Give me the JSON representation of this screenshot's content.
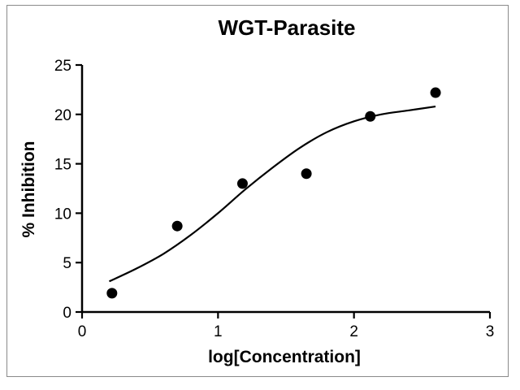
{
  "chart_data": {
    "type": "scatter",
    "title": "WGT-Parasite",
    "xlabel": "log[Concentration]",
    "ylabel": "% Inhibition",
    "xlim": [
      0,
      3
    ],
    "ylim": [
      0,
      25
    ],
    "xticks": [
      "0",
      "1",
      "2",
      "3"
    ],
    "yticks": [
      "0",
      "5",
      "10",
      "15",
      "20",
      "25"
    ],
    "grid": false,
    "legend": "none",
    "series": [
      {
        "x": [
          0.22,
          0.7,
          1.18,
          1.65,
          2.12,
          2.6
        ],
        "y": [
          1.9,
          8.7,
          13.0,
          14.0,
          19.8,
          22.2
        ]
      }
    ],
    "fit": {
      "type": "sigmoidal dose-response",
      "x": [
        0.2,
        0.4,
        0.6,
        0.8,
        1.0,
        1.2,
        1.4,
        1.6,
        1.8,
        2.0,
        2.2,
        2.4,
        2.6
      ],
      "y": [
        3.1,
        4.4,
        5.9,
        7.8,
        10.0,
        12.4,
        14.6,
        16.6,
        18.2,
        19.3,
        20.0,
        20.4,
        20.8
      ]
    },
    "colors": {
      "marker": "#000000",
      "line": "#000000",
      "axis": "#000000"
    }
  }
}
